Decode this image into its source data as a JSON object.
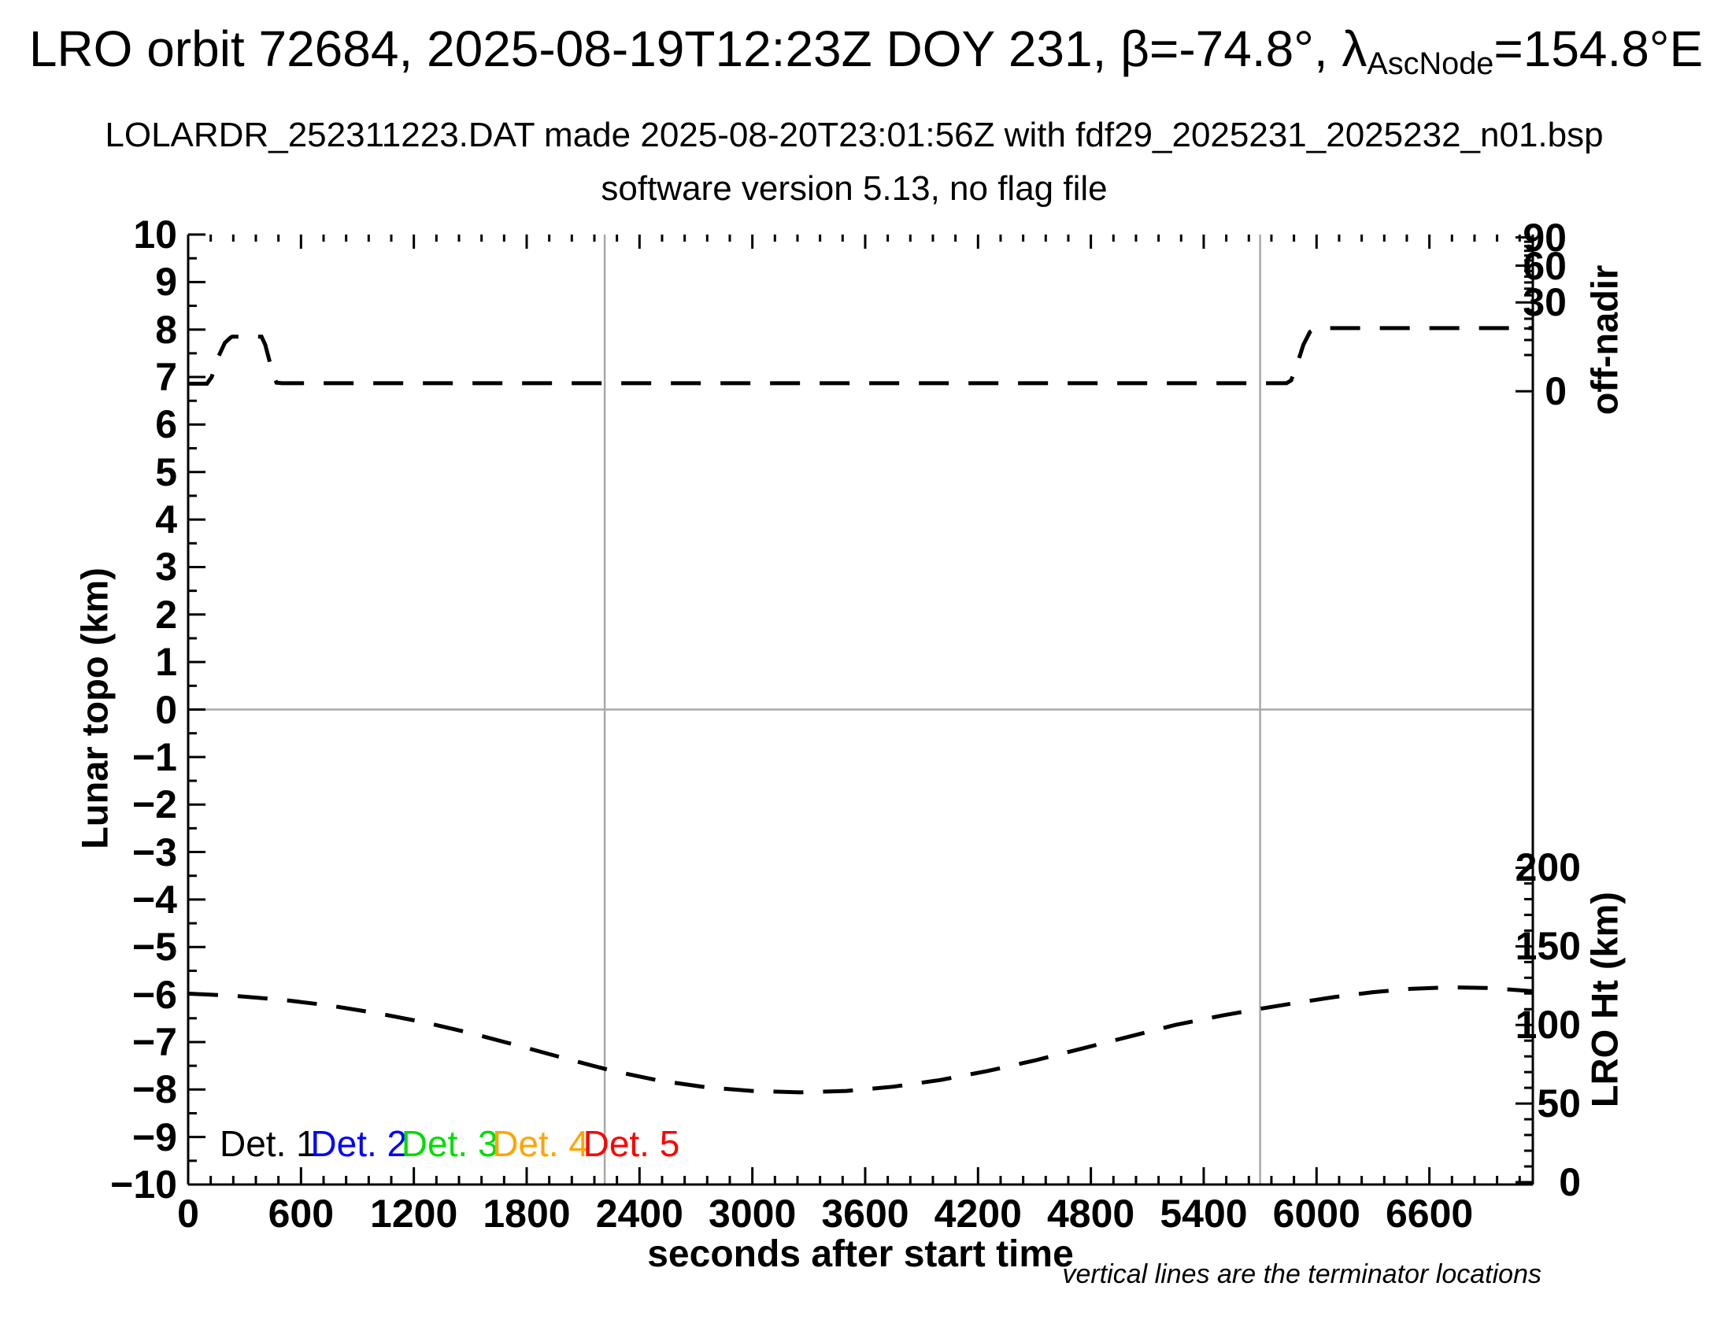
{
  "header": {
    "title_prefix": "LRO orbit 72684, 2025-08-19T12:23Z DOY 231, β=-74.8°, λ",
    "title_lambda_sub": "AscNode",
    "title_suffix": "=154.8°E",
    "subtitle1": "LOLARDR_252311223.DAT made 2025-08-20T23:01:56Z with fdf29_2025231_2025232_n01.bsp",
    "subtitle2": "software version 5.13, no flag file"
  },
  "chart_data": {
    "type": "line",
    "title": "LRO orbit 72684, 2025-08-19T12:23Z DOY 231, β=-74.8°, λ_AscNode=154.8°E",
    "xlabel": "seconds after start time",
    "ylabel_left": "Lunar topo (km)",
    "ylabel_right_top": "off-nadir",
    "ylabel_right_bottom": "LRO Ht (km)",
    "footnote": "vertical lines are the terminator locations",
    "x_range": [
      0,
      7150
    ],
    "y_range_left": [
      -10,
      10
    ],
    "x_major_ticks": [
      0,
      600,
      1200,
      1800,
      2400,
      3000,
      3600,
      4200,
      4800,
      5400,
      6000,
      6600
    ],
    "x_minor_step": 120,
    "y_major_step": 1,
    "y_minor_step": 0.5,
    "grid": "off",
    "zero_line_y": 0,
    "terminator_lines_x": [
      2215,
      5700
    ],
    "off_nadir_axis": {
      "major_deg": [
        90,
        60,
        30,
        0
      ],
      "minor_deg": [
        5,
        10,
        15,
        20,
        25,
        35,
        40,
        45,
        50,
        55,
        65,
        70,
        75,
        80,
        85
      ],
      "zero_at_left_value": 6.7,
      "ninety_at_left_value": 9.94,
      "mapping": "left_value = 6.7 + 3.24*sqrt(deg/90)"
    },
    "lro_ht_axis": {
      "major_km": [
        200,
        150,
        100,
        50,
        0
      ],
      "minor_step_km": 10,
      "max_km": 200,
      "zero_at_left_value": -9.95,
      "left_units_per_km": 0.0331
    },
    "series": [
      {
        "name": "off-nadir angle",
        "style": "dashed",
        "color": "#000000",
        "units_note": "points given in left-axis (Lunar topo) plotting units; baseline ~6.87 = ~0° off-nadir, right plateau ~8.03",
        "points": [
          [
            0,
            6.86
          ],
          [
            100,
            6.86
          ],
          [
            125,
            7.0
          ],
          [
            160,
            7.42
          ],
          [
            195,
            7.72
          ],
          [
            225,
            7.83
          ],
          [
            235,
            7.85
          ],
          [
            390,
            7.85
          ],
          [
            410,
            7.68
          ],
          [
            435,
            7.3
          ],
          [
            455,
            7.0
          ],
          [
            470,
            6.88
          ],
          [
            500,
            6.87
          ],
          [
            5840,
            6.87
          ],
          [
            5865,
            6.93
          ],
          [
            5895,
            7.25
          ],
          [
            5930,
            7.68
          ],
          [
            5965,
            7.95
          ],
          [
            5995,
            8.02
          ],
          [
            6020,
            8.03
          ],
          [
            7150,
            8.03
          ]
        ]
      },
      {
        "name": "LRO height",
        "style": "dashed",
        "color": "#000000",
        "units_note": "points given in left-axis plotting units; -6 ≈ 120 km, min -8.06 ≈ 57 km near t≈3250 s, max -5.85 ≈ 124 km near t≈6700 s",
        "points": [
          [
            0,
            -5.98
          ],
          [
            250,
            -6.03
          ],
          [
            500,
            -6.11
          ],
          [
            750,
            -6.23
          ],
          [
            1000,
            -6.39
          ],
          [
            1250,
            -6.58
          ],
          [
            1500,
            -6.81
          ],
          [
            1750,
            -7.07
          ],
          [
            2000,
            -7.34
          ],
          [
            2250,
            -7.6
          ],
          [
            2500,
            -7.81
          ],
          [
            2750,
            -7.95
          ],
          [
            3000,
            -8.03
          ],
          [
            3250,
            -8.06
          ],
          [
            3500,
            -8.03
          ],
          [
            3750,
            -7.94
          ],
          [
            4000,
            -7.8
          ],
          [
            4250,
            -7.61
          ],
          [
            4500,
            -7.39
          ],
          [
            4750,
            -7.14
          ],
          [
            5000,
            -6.89
          ],
          [
            5250,
            -6.64
          ],
          [
            5500,
            -6.44
          ],
          [
            5700,
            -6.3
          ],
          [
            5900,
            -6.17
          ],
          [
            6100,
            -6.05
          ],
          [
            6300,
            -5.95
          ],
          [
            6500,
            -5.88
          ],
          [
            6700,
            -5.85
          ],
          [
            6900,
            -5.86
          ],
          [
            7050,
            -5.9
          ],
          [
            7150,
            -5.93
          ]
        ]
      }
    ],
    "legend": [
      {
        "label": "Det. 1",
        "color": "#000000"
      },
      {
        "label": "Det. 2",
        "color": "#0000ff"
      },
      {
        "label": "Det. 3",
        "color": "#00dd00"
      },
      {
        "label": "Det. 4",
        "color": "#ffa500"
      },
      {
        "label": "Det. 5",
        "color": "#ff0000"
      }
    ],
    "colors": {
      "curve": "#000000",
      "terminator_line": "#a8a8a8",
      "zero_line": "#a8a8a8",
      "frame": "#000000"
    }
  }
}
